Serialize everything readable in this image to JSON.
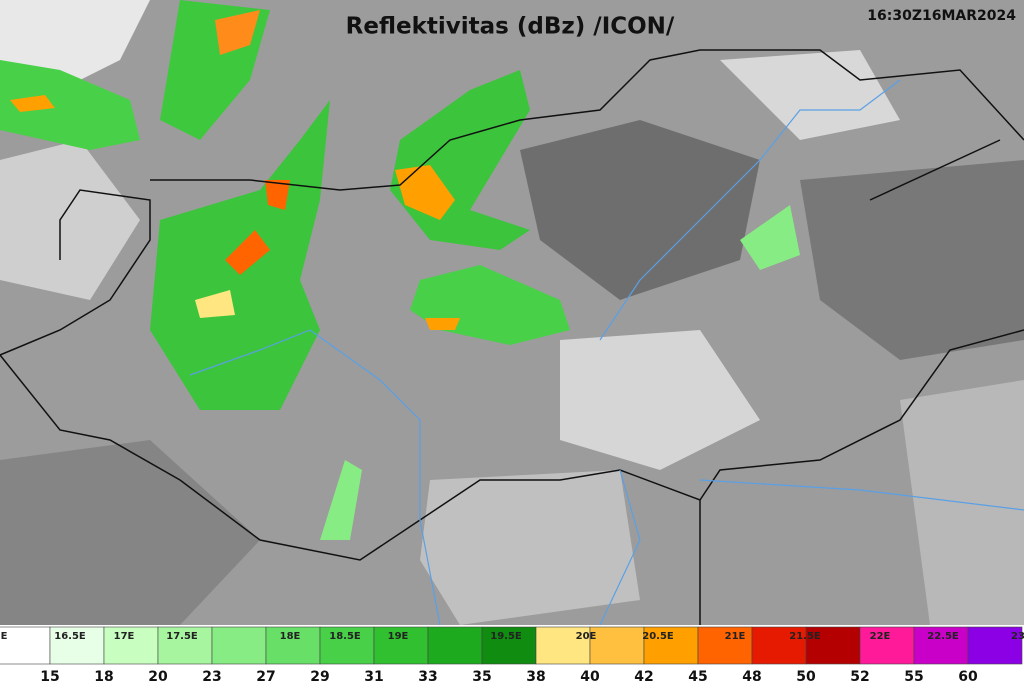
{
  "map": {
    "title": "Reflektivitas (dBz) /ICON/",
    "timestamp": "16:30Z16MAR2024",
    "legend": {
      "longitude_labels": [
        "E",
        "16.5E",
        "17E",
        "17.5E",
        "18E",
        "18.5E",
        "19E",
        "19.5E",
        "20E",
        "20.5E",
        "21E",
        "21.5E",
        "22E",
        "22.5E",
        "23"
      ],
      "values": [
        15,
        18,
        20,
        23,
        27,
        29,
        31,
        33,
        35,
        38,
        40,
        42,
        45,
        48,
        50,
        52,
        55,
        60
      ],
      "colors": [
        "#ffffff",
        "#e6ffe6",
        "#c8ffc0",
        "#a8f5a0",
        "#88ec84",
        "#68e068",
        "#48d048",
        "#30c030",
        "#1eaa1e",
        "#108c10",
        "#ffe680",
        "#ffc040",
        "#ffa000",
        "#ff6400",
        "#e61a00",
        "#b40000",
        "#ff1a9a",
        "#c800c8",
        "#8c00e6"
      ]
    }
  }
}
